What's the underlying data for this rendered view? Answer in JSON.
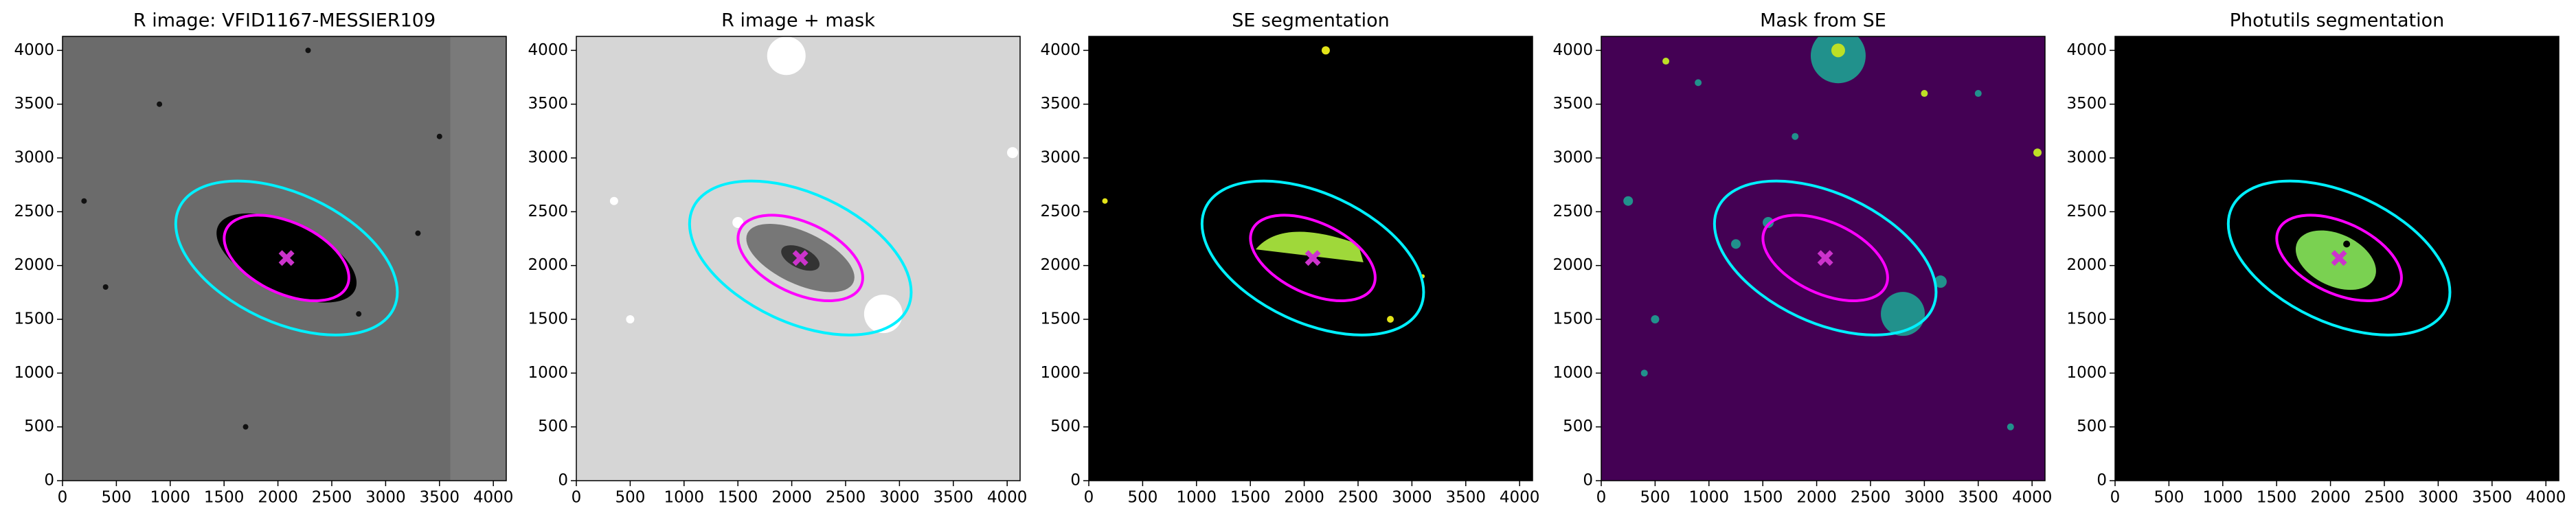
{
  "chart_data": [
    {
      "type": "image",
      "title": "R image: VFID1167-MESSIER109",
      "xlim": [
        0,
        4120
      ],
      "ylim": [
        0,
        4130
      ],
      "xticks": [
        0,
        500,
        1000,
        1500,
        2000,
        2500,
        3000,
        3500,
        4000
      ],
      "yticks": [
        0,
        500,
        1000,
        1500,
        2000,
        2500,
        3000,
        3500,
        4000
      ],
      "ellipses": [
        {
          "color": "#00f0ff",
          "x": 2080,
          "y": 2070,
          "a": 1100,
          "b": 600,
          "angle": -25
        },
        {
          "color": "#ff00ff",
          "x": 2080,
          "y": 2070,
          "a": 620,
          "b": 330,
          "angle": -25
        }
      ],
      "marker": {
        "x": 2080,
        "y": 2070,
        "color": "#cc33cc"
      }
    },
    {
      "type": "image",
      "title": "R image + mask",
      "xlim": [
        0,
        4120
      ],
      "ylim": [
        0,
        4130
      ],
      "xticks": [
        0,
        500,
        1000,
        1500,
        2000,
        2500,
        3000,
        3500,
        4000
      ],
      "yticks": [
        0,
        500,
        1000,
        1500,
        2000,
        2500,
        3000,
        3500,
        4000
      ],
      "ellipses": [
        {
          "color": "#00f0ff",
          "x": 2080,
          "y": 2070,
          "a": 1100,
          "b": 600,
          "angle": -25
        },
        {
          "color": "#ff00ff",
          "x": 2080,
          "y": 2070,
          "a": 620,
          "b": 330,
          "angle": -25
        }
      ],
      "marker": {
        "x": 2080,
        "y": 2070,
        "color": "#cc33cc"
      }
    },
    {
      "type": "image",
      "title": "SE segmentation",
      "xlim": [
        0,
        4120
      ],
      "ylim": [
        0,
        4130
      ],
      "xticks": [
        0,
        500,
        1000,
        1500,
        2000,
        2500,
        3000,
        3500,
        4000
      ],
      "yticks": [
        0,
        500,
        1000,
        1500,
        2000,
        2500,
        3000,
        3500,
        4000
      ],
      "ellipses": [
        {
          "color": "#00f0ff",
          "x": 2080,
          "y": 2070,
          "a": 1100,
          "b": 600,
          "angle": -25
        },
        {
          "color": "#ff00ff",
          "x": 2080,
          "y": 2070,
          "a": 620,
          "b": 330,
          "angle": -25
        }
      ],
      "marker": {
        "x": 2080,
        "y": 2070,
        "color": "#cc33cc"
      }
    },
    {
      "type": "image",
      "title": "Mask from SE",
      "xlim": [
        0,
        4120
      ],
      "ylim": [
        0,
        4130
      ],
      "xticks": [
        0,
        500,
        1000,
        1500,
        2000,
        2500,
        3000,
        3500,
        4000
      ],
      "yticks": [
        0,
        500,
        1000,
        1500,
        2000,
        2500,
        3000,
        3500,
        4000
      ],
      "ellipses": [
        {
          "color": "#00f0ff",
          "x": 2080,
          "y": 2070,
          "a": 1100,
          "b": 600,
          "angle": -25
        },
        {
          "color": "#ff00ff",
          "x": 2080,
          "y": 2070,
          "a": 620,
          "b": 330,
          "angle": -25
        }
      ],
      "marker": {
        "x": 2080,
        "y": 2070,
        "color": "#cc33cc"
      }
    },
    {
      "type": "image",
      "title": "Photutils segmentation",
      "xlim": [
        0,
        4120
      ],
      "ylim": [
        0,
        4130
      ],
      "xticks": [
        0,
        500,
        1000,
        1500,
        2000,
        2500,
        3000,
        3500,
        4000
      ],
      "yticks": [
        0,
        500,
        1000,
        1500,
        2000,
        2500,
        3000,
        3500,
        4000
      ],
      "ellipses": [
        {
          "color": "#00f0ff",
          "x": 2080,
          "y": 2070,
          "a": 1100,
          "b": 600,
          "angle": -25
        },
        {
          "color": "#ff00ff",
          "x": 2080,
          "y": 2070,
          "a": 620,
          "b": 330,
          "angle": -25
        }
      ],
      "marker": {
        "x": 2080,
        "y": 2070,
        "color": "#cc33cc"
      }
    }
  ]
}
